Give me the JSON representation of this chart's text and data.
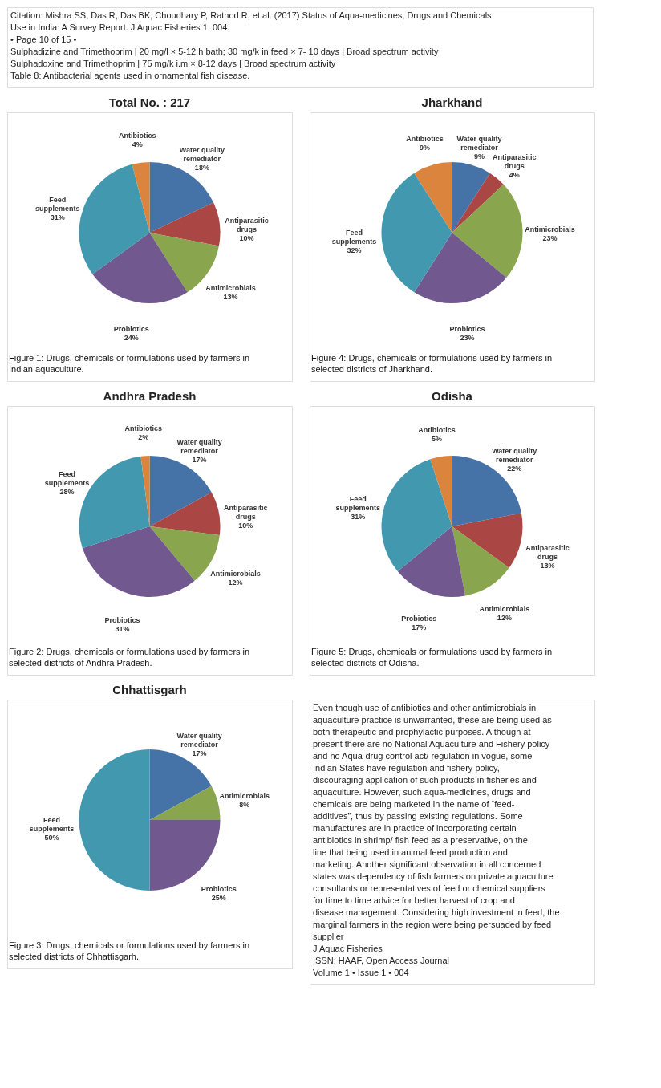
{
  "chart_data": [
    {
      "type": "other",
      "annotations": [
        "Citation: Mishra SS, Das R, Das BK, Choudhary P, Rathod R, et al. (2017) Status of Aqua-medicines, Drugs and Chemicals Use in India: A Survey Report. J Aquac Fisheries 1: 004.",
        "• Page 10 of 15 •",
        "Sulphadizine and Trimethoprim  |  20 mg/l × 5-12 h bath; 30 mg/k in feed × 7- 10 days  |  Broad spectrum activity",
        "Sulphadoxine and Trimethoprim  |  75 mg/k i.m × 8-12 days  |  Broad spectrum activity",
        "Table 8: Antibacterial agents used in ornamental fish disease."
      ]
    },
    {
      "type": "pie",
      "title": "Total No. : 217",
      "categories": [
        "Water quality remediator",
        "Antiparasitic drugs",
        "Antimicrobials",
        "Probiotics",
        "Feed supplements",
        "Antibiotics"
      ],
      "values": [
        18,
        10,
        13,
        24,
        31,
        4
      ],
      "value_labels": [
        "18%",
        "10%",
        "13%",
        "24%",
        "31%",
        "4%"
      ],
      "colors": [
        "#4572a7",
        "#aa4643",
        "#89a54e",
        "#71588f",
        "#4198af",
        "#db843d"
      ],
      "annotations": [
        "Figure 1: Drugs, chemicals or formulations used by farmers in Indian aquaculture."
      ]
    },
    {
      "type": "pie",
      "title": "Jharkhand",
      "categories": [
        "Water quality remediator",
        "Antiparasitic drugs",
        "Antimicrobials",
        "Probiotics",
        "Feed supplements",
        "Antibiotics"
      ],
      "values": [
        9,
        4,
        23,
        23,
        32,
        9
      ],
      "value_labels": [
        "9%",
        "4%",
        "23%",
        "23%",
        "32%",
        "9%"
      ],
      "colors": [
        "#4572a7",
        "#aa4643",
        "#89a54e",
        "#71588f",
        "#4198af",
        "#db843d"
      ],
      "annotations": [
        "Figure 4: Drugs, chemicals or formulations used by farmers in selected districts of Jharkhand."
      ]
    },
    {
      "type": "pie",
      "title": "Andhra Pradesh",
      "categories": [
        "Water quality remediator",
        "Antiparasitic drugs",
        "Antimicrobials",
        "Probiotics",
        "Feed supplements",
        "Antibiotics"
      ],
      "values": [
        17,
        10,
        12,
        31,
        28,
        2
      ],
      "value_labels": [
        "17%",
        "10%",
        "12%",
        "31%",
        "28%",
        "2%"
      ],
      "colors": [
        "#4572a7",
        "#aa4643",
        "#89a54e",
        "#71588f",
        "#4198af",
        "#db843d"
      ],
      "annotations": [
        "Figure 2: Drugs, chemicals or formulations used by farmers in selected districts of Andhra Pradesh."
      ]
    },
    {
      "type": "pie",
      "title": "Odisha",
      "categories": [
        "Water quality remediator",
        "Antiparasitic drugs",
        "Antimicrobials",
        "Probiotics",
        "Feed supplements",
        "Antibiotics"
      ],
      "values": [
        22,
        13,
        12,
        17,
        31,
        5
      ],
      "value_labels": [
        "22%",
        "13%",
        "12%",
        "17%",
        "31%",
        "5%"
      ],
      "colors": [
        "#4572a7",
        "#aa4643",
        "#89a54e",
        "#71588f",
        "#4198af",
        "#db843d"
      ],
      "annotations": [
        "Figure 5: Drugs, chemicals or formulations used by farmers in selected districts of Odisha."
      ]
    },
    {
      "type": "pie",
      "title": "Chhattisgarh",
      "categories": [
        "Water quality remediator",
        "Antimicrobials",
        "Probiotics",
        "Feed supplements"
      ],
      "values": [
        17,
        8,
        25,
        50
      ],
      "value_labels": [
        "17%",
        "8%",
        "25%",
        "50%"
      ],
      "colors": [
        "#4572a7",
        "#89a54e",
        "#71588f",
        "#4198af"
      ],
      "annotations": [
        "Figure 3: Drugs, chemicals or formulations used by farmers in selected districts of Chhattisgarh."
      ]
    },
    {
      "type": "other",
      "annotations": [
        "Even though use of antibiotics and other antimicrobials in aquaculture practice is unwarranted, these are being used as both therapeutic and prophylactic purposes. Although at present there are no National Aquaculture and Fishery policy and no Aqua-drug control act/ regulation in vogue, some Indian States have regulation and fishery policy, discouraging application of such products in fisheries and aquaculture. However, such aqua-medicines, drugs and chemicals are being marketed in the name of “feed-additives”, thus by passing existing regulations. Some manufactures are in practice of incorporating certain antibiotics in shrimp/ fish feed as a preservative, on the line that being used in animal feed production and marketing. Another significant observation in all concerned states was dependency of fish farmers on private aquaculture consultants or representatives of feed or chemical suppliers for time to time advice for better harvest of crop and disease management. Considering high investment in feed, the marginal farmers in the region were being persuaded by feed supplier",
        "J Aquac Fisheries",
        "ISSN: HAAF, Open Access Journal",
        "Volume 1 • Issue 1 • 004"
      ]
    }
  ]
}
